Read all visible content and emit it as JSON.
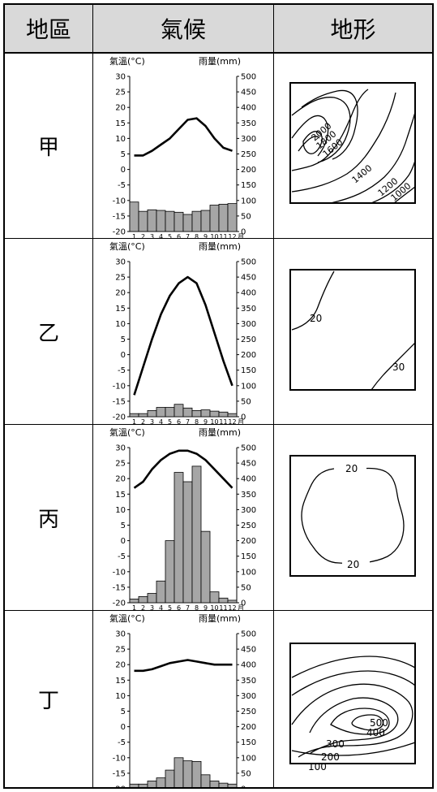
{
  "table": {
    "headers": [
      "地區",
      "氣候",
      "地形"
    ]
  },
  "rows": [
    {
      "region": "甲",
      "contours": [
        "2000",
        "1800",
        "1600",
        "1400",
        "1200",
        "1000"
      ]
    },
    {
      "region": "乙",
      "contours": [
        "20",
        "30"
      ]
    },
    {
      "region": "丙",
      "contours": [
        "20",
        "20"
      ]
    },
    {
      "region": "丁",
      "contours": [
        "500",
        "400",
        "300",
        "200",
        "100"
      ]
    }
  ],
  "chart_common": {
    "temp_label": "氣溫(°C)",
    "rain_label": "雨量(mm)",
    "temp_ticks": [
      "30",
      "25",
      "20",
      "15",
      "10",
      "5",
      "0",
      "-5",
      "-10",
      "-15",
      "-20"
    ],
    "rain_ticks": [
      "500",
      "450",
      "400",
      "350",
      "300",
      "250",
      "200",
      "150",
      "100",
      "50",
      "0"
    ],
    "month_labels": [
      "1",
      "2",
      "3",
      "4",
      "5",
      "6",
      "7",
      "8",
      "9",
      "10",
      "11",
      "12"
    ],
    "month_unit": "月"
  },
  "chart_data": [
    {
      "type": "bar",
      "name": "甲",
      "months": [
        1,
        2,
        3,
        4,
        5,
        6,
        7,
        8,
        9,
        10,
        11,
        12
      ],
      "temperature_c": [
        4.5,
        4.5,
        6,
        8,
        10,
        13,
        16,
        16.5,
        14,
        10,
        7,
        6
      ],
      "rainfall_mm": [
        95,
        65,
        70,
        68,
        65,
        62,
        55,
        65,
        68,
        85,
        88,
        90
      ],
      "ylim_temp": [
        -20,
        30
      ],
      "ylim_rain": [
        0,
        500
      ]
    },
    {
      "type": "bar",
      "name": "乙",
      "months": [
        1,
        2,
        3,
        4,
        5,
        6,
        7,
        8,
        9,
        10,
        11,
        12
      ],
      "temperature_c": [
        -13,
        -4,
        5,
        13,
        19,
        23,
        25,
        23,
        16,
        7,
        -2,
        -10
      ],
      "rainfall_mm": [
        10,
        10,
        20,
        30,
        30,
        40,
        28,
        20,
        22,
        18,
        15,
        10
      ],
      "ylim_temp": [
        -20,
        30
      ],
      "ylim_rain": [
        0,
        500
      ]
    },
    {
      "type": "bar",
      "name": "丙",
      "months": [
        1,
        2,
        3,
        4,
        5,
        6,
        7,
        8,
        9,
        10,
        11,
        12
      ],
      "temperature_c": [
        17,
        19,
        23,
        26,
        28,
        29,
        29,
        28,
        26,
        23,
        20,
        17
      ],
      "rainfall_mm": [
        12,
        20,
        30,
        70,
        200,
        420,
        390,
        440,
        230,
        35,
        15,
        8
      ],
      "ylim_temp": [
        -20,
        30
      ],
      "ylim_rain": [
        0,
        500
      ]
    },
    {
      "type": "bar",
      "name": "丁",
      "months": [
        1,
        2,
        3,
        4,
        5,
        6,
        7,
        8,
        9,
        10,
        11,
        12
      ],
      "temperature_c": [
        18,
        18,
        18.5,
        19.5,
        20.5,
        21,
        21.5,
        21,
        20.5,
        20,
        20,
        20
      ],
      "rainfall_mm": [
        15,
        15,
        25,
        35,
        60,
        100,
        90,
        88,
        45,
        25,
        18,
        15
      ],
      "ylim_temp": [
        -20,
        30
      ],
      "ylim_rain": [
        0,
        500
      ]
    }
  ]
}
